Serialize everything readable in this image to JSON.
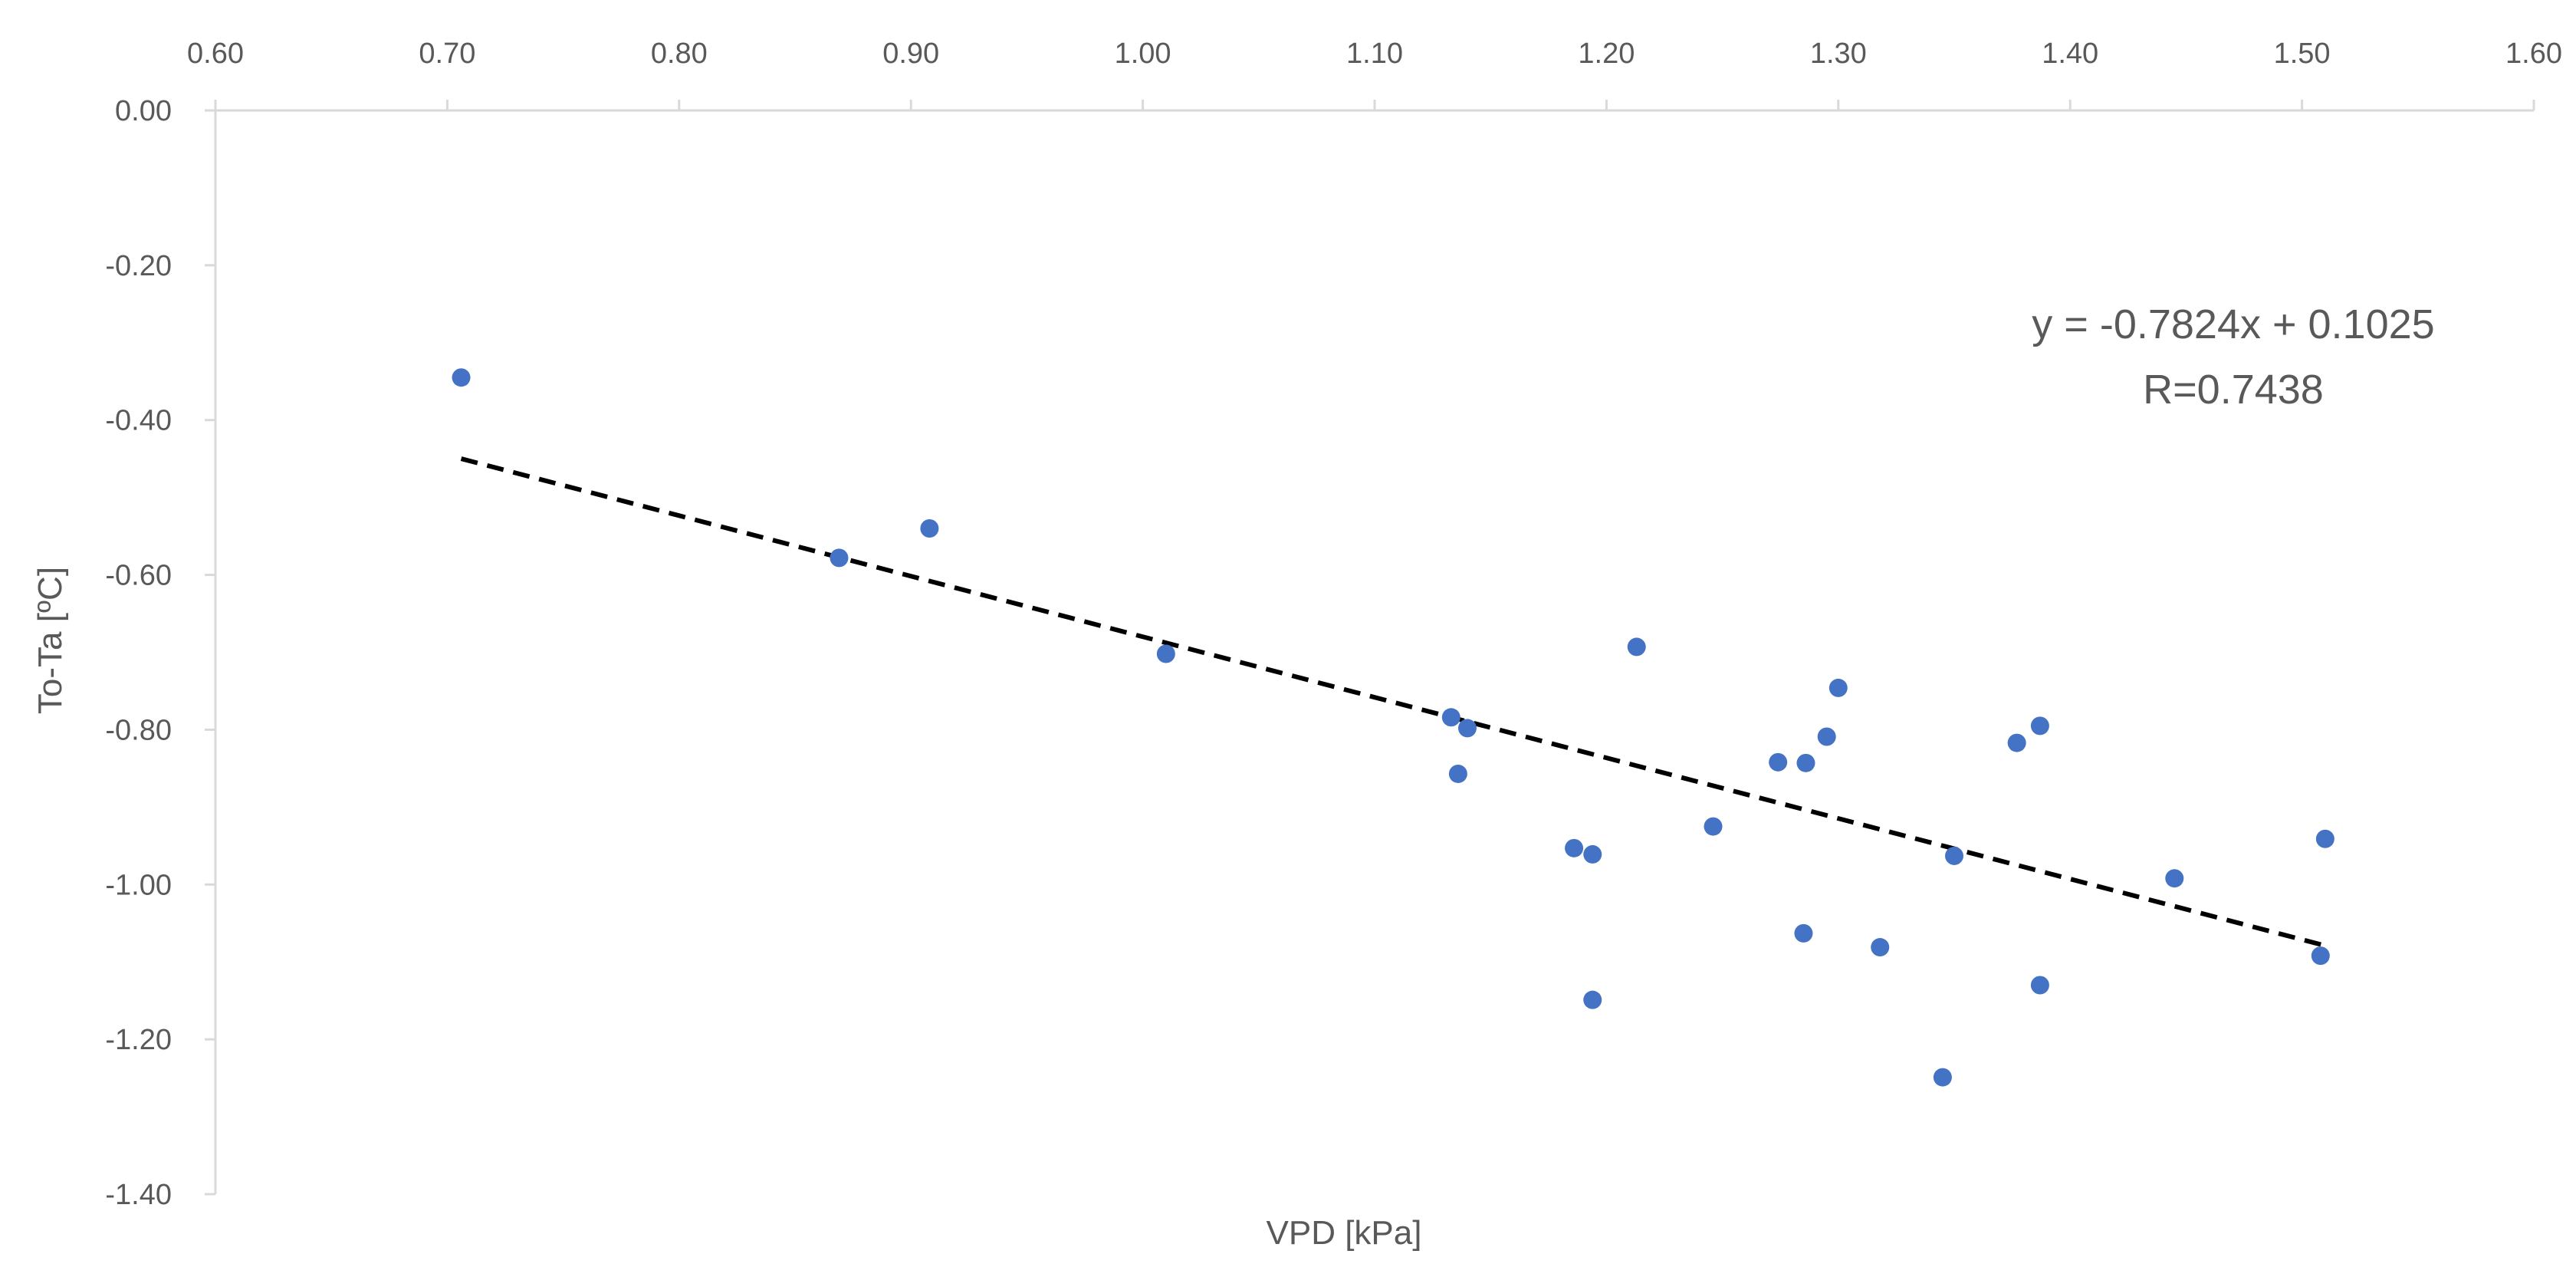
{
  "chart_data": {
    "type": "scatter",
    "xlabel": "VPD [kPa]",
    "ylabel": "To-Ta [ºC]",
    "xlim": [
      0.6,
      1.6
    ],
    "ylim": [
      -1.4,
      0.0
    ],
    "x_axis_position": "top",
    "x_ticks": [
      "0.60",
      "0.70",
      "0.80",
      "0.90",
      "1.00",
      "1.10",
      "1.20",
      "1.30",
      "1.40",
      "1.50",
      "1.60"
    ],
    "y_ticks": [
      "0.00",
      "-0.20",
      "-0.40",
      "-0.60",
      "-0.80",
      "-1.00",
      "-1.20",
      "-1.40"
    ],
    "grid": false,
    "point_color": "#4472c4",
    "trendline_color": "#000000",
    "annotation": {
      "equation": "y = -0.7824x + 0.1025",
      "r_value": "R=0.7438"
    },
    "trendline": {
      "slope": -0.7824,
      "intercept": 0.1025,
      "x_range": [
        0.706,
        1.51
      ]
    },
    "series": [
      {
        "points": [
          {
            "x": 0.706,
            "y": -0.345
          },
          {
            "x": 0.869,
            "y": -0.578
          },
          {
            "x": 0.908,
            "y": -0.54
          },
          {
            "x": 1.01,
            "y": -0.702
          },
          {
            "x": 1.133,
            "y": -0.784
          },
          {
            "x": 1.136,
            "y": -0.857
          },
          {
            "x": 1.14,
            "y": -0.798
          },
          {
            "x": 1.186,
            "y": -0.953
          },
          {
            "x": 1.194,
            "y": -1.149
          },
          {
            "x": 1.194,
            "y": -0.961
          },
          {
            "x": 1.213,
            "y": -0.693
          },
          {
            "x": 1.246,
            "y": -0.925
          },
          {
            "x": 1.274,
            "y": -0.842
          },
          {
            "x": 1.285,
            "y": -1.063
          },
          {
            "x": 1.286,
            "y": -0.843
          },
          {
            "x": 1.295,
            "y": -0.809
          },
          {
            "x": 1.3,
            "y": -0.746
          },
          {
            "x": 1.318,
            "y": -1.081
          },
          {
            "x": 1.345,
            "y": -1.249
          },
          {
            "x": 1.35,
            "y": -0.963
          },
          {
            "x": 1.377,
            "y": -0.817
          },
          {
            "x": 1.387,
            "y": -1.13
          },
          {
            "x": 1.387,
            "y": -0.795
          },
          {
            "x": 1.445,
            "y": -0.992
          },
          {
            "x": 1.508,
            "y": -1.092
          },
          {
            "x": 1.51,
            "y": -0.941
          }
        ]
      }
    ]
  }
}
